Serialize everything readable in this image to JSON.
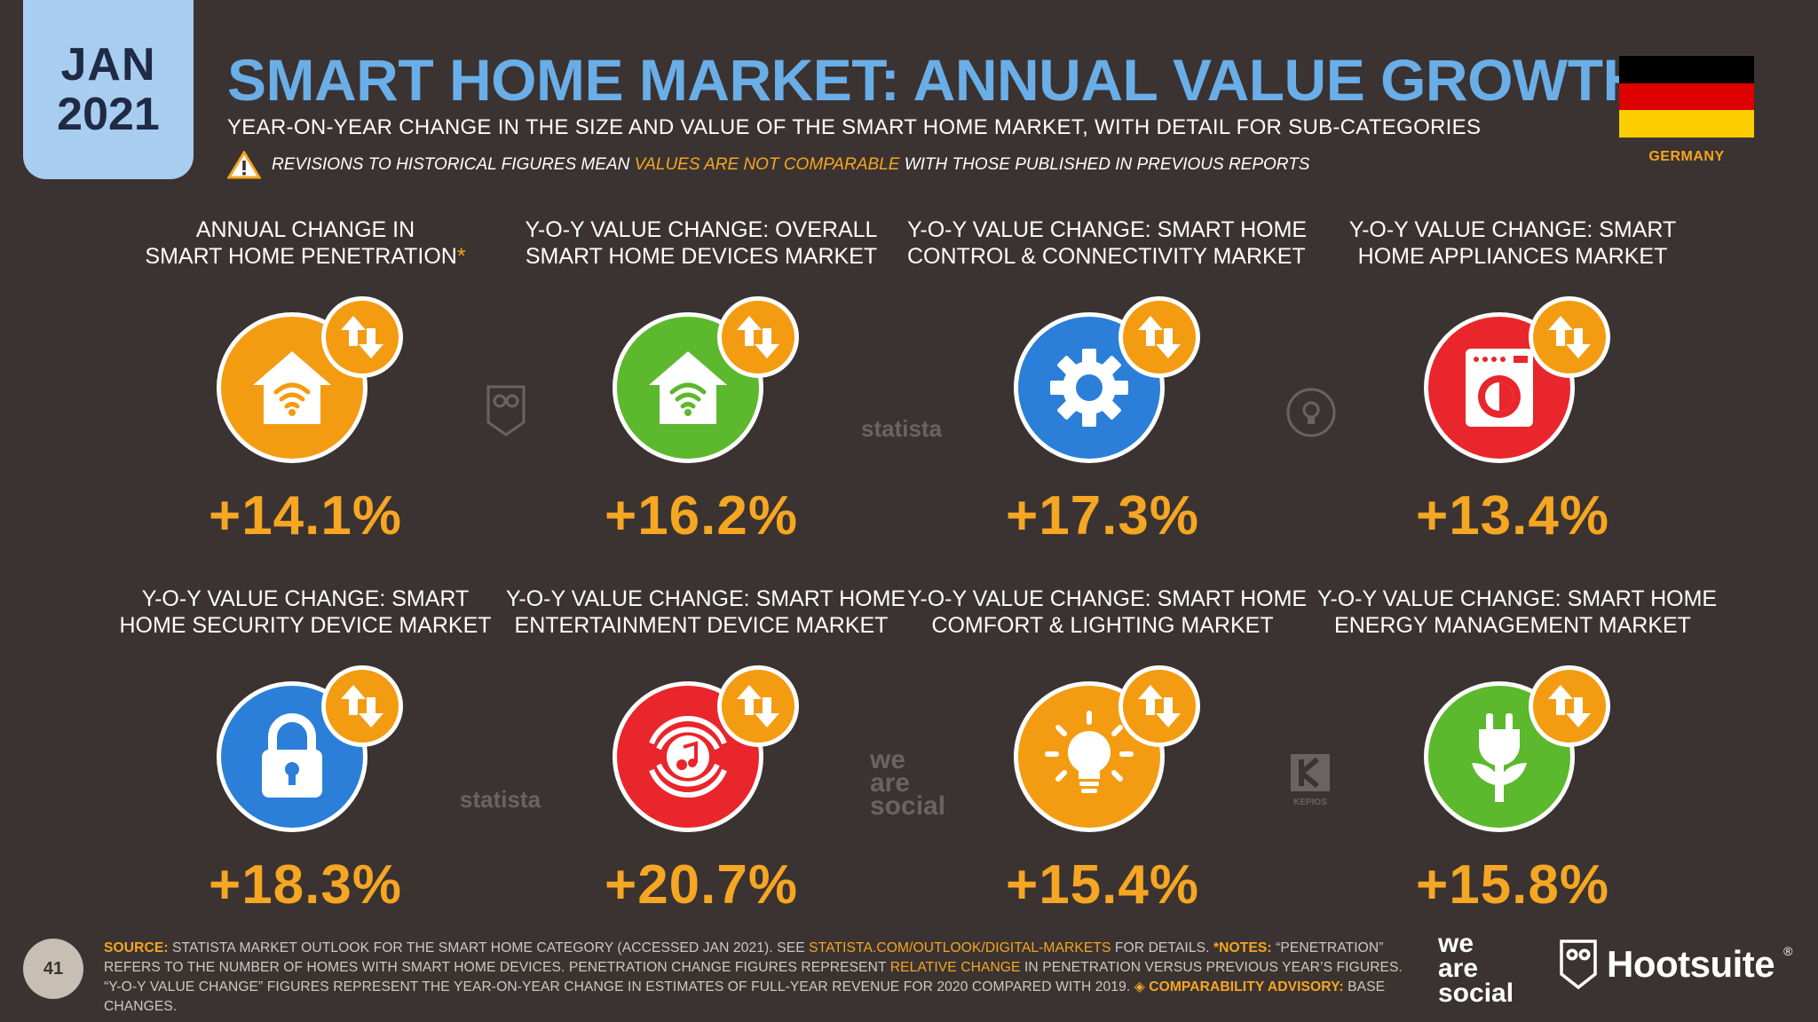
{
  "date_tab": {
    "month": "JAN",
    "year": "2021"
  },
  "title": "SMART HOME MARKET: ANNUAL VALUE GROWTH",
  "subtitle": "YEAR-ON-YEAR CHANGE IN THE SIZE AND VALUE OF THE SMART HOME MARKET, WITH DETAIL FOR SUB-CATEGORIES",
  "warning": {
    "pre": "REVISIONS TO HISTORICAL FIGURES MEAN",
    "highlight": "VALUES ARE NOT COMPARABLE",
    "post": "WITH THOSE PUBLISHED IN PREVIOUS REPORTS"
  },
  "country": "GERMANY",
  "flag_colors": [
    "#000000",
    "#dd0000",
    "#ffce00"
  ],
  "cards": [
    {
      "line1": "ANNUAL CHANGE IN",
      "line2": "SMART HOME PENETRATION",
      "asterisk": "*",
      "value": "+14.1%",
      "icon": "smart-home-icon",
      "color": "#f39c12"
    },
    {
      "line1": "Y-O-Y VALUE CHANGE: OVERALL",
      "line2": "SMART HOME DEVICES MARKET",
      "value": "+16.2%",
      "icon": "smart-home-icon",
      "color": "#5cb82d"
    },
    {
      "line1": "Y-O-Y VALUE CHANGE: SMART HOME",
      "line2": "CONTROL & CONNECTIVITY MARKET",
      "value": "+17.3%",
      "icon": "gear-icon",
      "color": "#2b7fd8"
    },
    {
      "line1": "Y-O-Y VALUE CHANGE: SMART",
      "line2": "HOME APPLIANCES MARKET",
      "value": "+13.4%",
      "icon": "washing-machine-icon",
      "color": "#e8262b"
    },
    {
      "line1": "Y-O-Y VALUE CHANGE: SMART",
      "line2": "HOME SECURITY DEVICE MARKET",
      "value": "+18.3%",
      "icon": "padlock-icon",
      "color": "#2b7fd8"
    },
    {
      "line1": "Y-O-Y VALUE CHANGE: SMART HOME",
      "line2": "ENTERTAINMENT DEVICE MARKET",
      "value": "+20.7%",
      "icon": "music-speaker-icon",
      "color": "#e8262b"
    },
    {
      "line1": "Y-O-Y VALUE CHANGE: SMART HOME",
      "line2": "COMFORT & LIGHTING MARKET",
      "value": "+15.4%",
      "icon": "light-bulb-icon",
      "color": "#f39c12"
    },
    {
      "line1": "Y-O-Y VALUE CHANGE: SMART HOME",
      "line2": "ENERGY MANAGEMENT MARKET",
      "value": "+15.8%",
      "icon": "energy-plug-icon",
      "color": "#5cb82d"
    }
  ],
  "watermarks": {
    "statista": "statista",
    "kepios": "KEPIOS",
    "was_1": "we",
    "was_2": "are",
    "was_3": "social"
  },
  "page_number": "41",
  "source": {
    "k1": "SOURCE:",
    "t1": "STATISTA MARKET OUTLOOK FOR THE SMART HOME CATEGORY (ACCESSED JAN 2021). SEE",
    "link": "STATISTA.COM/OUTLOOK/DIGITAL-MARKETS",
    "t2": "FOR DETAILS.",
    "k2": "*NOTES:",
    "t3": "“PENETRATION” REFERS TO THE NUMBER OF HOMES WITH SMART HOME DEVICES. PENETRATION CHANGE FIGURES REPRESENT",
    "o1": "RELATIVE CHANGE",
    "t4": "IN PENETRATION VERSUS PREVIOUS YEAR’S FIGURES. “Y-O-Y VALUE CHANGE” FIGURES REPRESENT THE YEAR-ON-YEAR CHANGE IN ESTIMATES OF FULL-YEAR REVENUE FOR 2020 COMPARED WITH 2019.",
    "k3": "◈ COMPARABILITY ADVISORY:",
    "t5": "BASE CHANGES."
  },
  "logos": {
    "was_1": "we",
    "was_2": "are",
    "was_3": "social",
    "hootsuite": "Hootsuite",
    "reg": "®"
  }
}
